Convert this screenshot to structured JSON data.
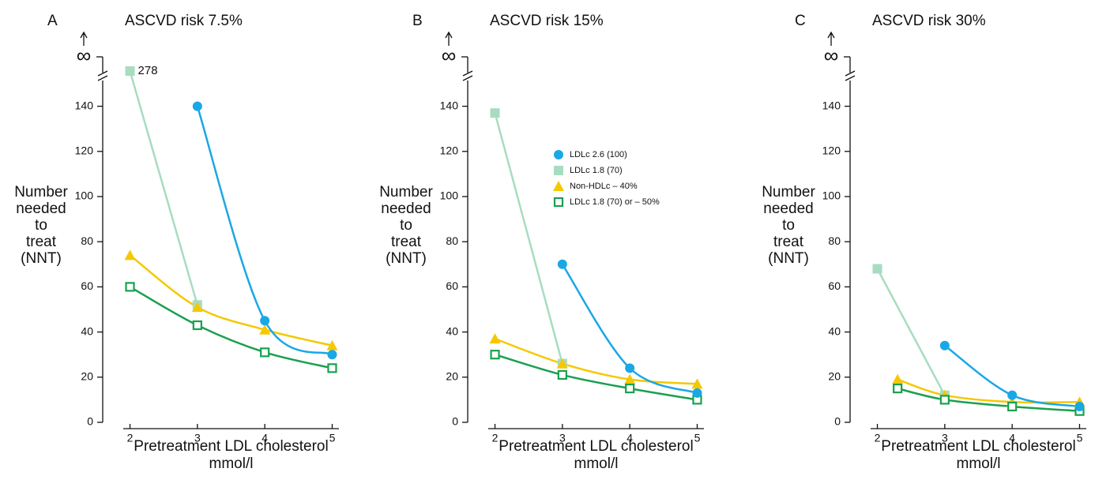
{
  "chart_data": [
    {
      "type": "line",
      "panel": "A",
      "title": "ASCVD risk 7.5%",
      "xlabel": [
        "Pretreatment LDL cholesterol",
        "mmol/l"
      ],
      "ylabel": [
        "Number",
        "needed",
        "to",
        "treat",
        "(NNT)"
      ],
      "infinity_label": "∞",
      "xlim": [
        1.9,
        5.1
      ],
      "xticks": [
        2,
        3,
        4,
        5
      ],
      "ylim": [
        0,
        150
      ],
      "yticks": [
        0,
        20,
        40,
        60,
        80,
        100,
        120,
        140
      ],
      "legend": false,
      "series": [
        {
          "color": "#1aa7e6",
          "marker": "circle",
          "x": [
            3,
            4,
            5
          ],
          "values": [
            140,
            45,
            30
          ]
        },
        {
          "color": "#a8dcc0",
          "marker": "square",
          "x": [
            2,
            3
          ],
          "values": [
            278,
            52
          ]
        },
        {
          "color": "#f5c800",
          "marker": "triangle",
          "x": [
            2,
            3,
            4,
            5
          ],
          "values": [
            74,
            51,
            41,
            34
          ]
        },
        {
          "color": "#1aa050",
          "marker": "open-square",
          "x": [
            2,
            3,
            4,
            5
          ],
          "values": [
            60,
            43,
            31,
            24
          ]
        }
      ]
    },
    {
      "type": "line",
      "panel": "B",
      "title": "ASCVD risk 15%",
      "xlabel": [
        "Pretreatment LDL cholesterol",
        "mmol/l"
      ],
      "ylabel": [
        "Number",
        "needed",
        "to",
        "treat",
        "(NNT)"
      ],
      "infinity_label": "∞",
      "xlim": [
        1.9,
        5.1
      ],
      "xticks": [
        2,
        3,
        4,
        5
      ],
      "ylim": [
        0,
        150
      ],
      "yticks": [
        0,
        20,
        40,
        60,
        80,
        100,
        120,
        140
      ],
      "legend": true,
      "series": [
        {
          "name": "LDLc 2.6 (100)",
          "color": "#1aa7e6",
          "marker": "circle",
          "x": [
            3,
            4,
            5
          ],
          "values": [
            70,
            24,
            13
          ]
        },
        {
          "name": "LDLc 1.8 (70)",
          "color": "#a8dcc0",
          "marker": "square",
          "x": [
            2,
            3
          ],
          "values": [
            137,
            26
          ]
        },
        {
          "name": "Non-HDLc – 40%",
          "color": "#f5c800",
          "marker": "triangle",
          "x": [
            2,
            3,
            4,
            5
          ],
          "values": [
            37,
            26,
            19,
            17
          ]
        },
        {
          "name": "LDLc 1.8 (70) or – 50%",
          "color": "#1aa050",
          "marker": "open-square",
          "x": [
            2,
            3,
            4,
            5
          ],
          "values": [
            30,
            21,
            15,
            10
          ]
        }
      ]
    },
    {
      "type": "line",
      "panel": "C",
      "title": "ASCVD risk 30%",
      "xlabel": [
        "Pretreatment LDL cholesterol",
        "mmol/l"
      ],
      "ylabel": [
        "Number",
        "needed",
        "to",
        "treat",
        "(NNT)"
      ],
      "infinity_label": "∞",
      "xlim": [
        1.9,
        5.1
      ],
      "xticks": [
        2,
        3,
        4,
        5
      ],
      "ylim": [
        0,
        150
      ],
      "yticks": [
        0,
        20,
        40,
        60,
        80,
        100,
        120,
        140
      ],
      "legend": false,
      "series": [
        {
          "color": "#1aa7e6",
          "marker": "circle",
          "x": [
            3,
            4,
            5
          ],
          "values": [
            34,
            12,
            7
          ]
        },
        {
          "color": "#a8dcc0",
          "marker": "square",
          "x": [
            2,
            3
          ],
          "values": [
            68,
            12
          ]
        },
        {
          "color": "#f5c800",
          "marker": "triangle",
          "x": [
            2.3,
            3,
            4,
            5
          ],
          "values": [
            19,
            12,
            9,
            9
          ]
        },
        {
          "color": "#1aa050",
          "marker": "open-square",
          "x": [
            2.3,
            3,
            4,
            5
          ],
          "values": [
            15,
            10,
            7,
            5
          ]
        }
      ]
    }
  ]
}
